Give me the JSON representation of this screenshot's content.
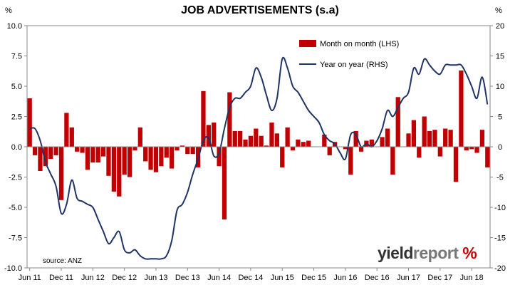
{
  "chart_data": {
    "type": "bar+line",
    "title": "JOB ADVERTISEMENTS (s.a)",
    "left_unit": "%",
    "right_unit": "%",
    "source": "source: ANZ",
    "brand": {
      "word1": "yield",
      "word2": "report",
      "symbol": "%"
    },
    "colors": {
      "bar": "#c00000",
      "line": "#1f3366"
    },
    "left_axis": {
      "min": -10,
      "max": 10,
      "ticks": [
        -10.0,
        -7.5,
        -5.0,
        -2.5,
        0.0,
        2.5,
        5.0,
        7.5,
        10.0
      ],
      "tick_labels": [
        "-10.0",
        "-7.5",
        "-5.0",
        "-2.5",
        "0.0",
        "2.5",
        "5.0",
        "7.5",
        "10.0"
      ]
    },
    "right_axis": {
      "min": -20,
      "max": 20,
      "ticks": [
        -20,
        -15,
        -10,
        -5,
        0,
        5,
        10,
        15,
        20
      ],
      "tick_labels": [
        "-20",
        "-15",
        "-10",
        "-5",
        "0",
        "5",
        "10",
        "15",
        "20"
      ]
    },
    "x_labels": [
      "Jun 11",
      "Dec 11",
      "Jun 12",
      "Dec 12",
      "Jun 13",
      "Dec 13",
      "Jun 14",
      "Dec 14",
      "Jun 15",
      "Dec 15",
      "Jun 16",
      "Dec 16",
      "Jun 17",
      "Dec 17",
      "Jun 18"
    ],
    "legend": [
      {
        "name": "Month on month (LHS)",
        "kind": "bar"
      },
      {
        "name": "Year on year (RHS)",
        "kind": "line"
      }
    ],
    "series": [
      {
        "name": "Month on month (LHS)",
        "values": [
          4.0,
          -0.7,
          -2.0,
          -1.6,
          -1.0,
          -0.7,
          -4.4,
          2.8,
          1.6,
          -0.4,
          -0.5,
          -1.9,
          -1.3,
          -1.3,
          -0.8,
          -2.4,
          -3.7,
          -4.1,
          -2.3,
          -2.5,
          -0.3,
          1.6,
          -1.2,
          -1.9,
          -2.1,
          -1.6,
          -0.9,
          -1.8,
          -0.3,
          0.1,
          -0.6,
          -0.6,
          -1.7,
          4.6,
          1.8,
          2.0,
          -1.6,
          -6.0,
          4.5,
          1.3,
          1.3,
          0.6,
          0.9,
          1.5,
          0.9,
          0.1,
          2.0,
          1.1,
          -1.7,
          1.6,
          -0.3,
          0.6,
          0.4,
          0.5,
          0.0,
          0.0,
          1.0,
          -0.7,
          0.4,
          0.0,
          -0.2,
          -2.3,
          1.3,
          -0.4,
          0.5,
          0.6,
          0.0,
          0.8,
          1.5,
          -2.3,
          4.1,
          0.0,
          1.1,
          2.2,
          -0.9,
          2.5,
          1.3,
          1.4,
          -0.8,
          1.5,
          1.4,
          -2.9,
          6.3,
          -0.3,
          -0.2,
          -0.5,
          1.4,
          -1.7
        ]
      },
      {
        "name": "Year on year (RHS)",
        "values": [
          3.0,
          3.0,
          1.0,
          -2.5,
          -4.5,
          -6.5,
          -11.0,
          -9.5,
          -5.5,
          -8.5,
          -9.0,
          -9.5,
          -10.0,
          -12.0,
          -14.0,
          -16.0,
          -15.0,
          -14.0,
          -17.0,
          -17.5,
          -17.0,
          -18.0,
          -18.5,
          -18.5,
          -18.5,
          -18.5,
          -18.0,
          -15.5,
          -10.5,
          -9.5,
          -7.5,
          -4.5,
          -2.0,
          1.0,
          1.5,
          -1.5,
          -1.0,
          3.0,
          6.5,
          8.0,
          8.0,
          9.0,
          10.0,
          13.0,
          11.5,
          8.5,
          6.0,
          8.0,
          14.5,
          13.0,
          10.0,
          9.0,
          7.5,
          6.0,
          5.0,
          4.0,
          2.0,
          1.0,
          0.5,
          -1.0,
          -2.0,
          2.0,
          2.0,
          0.0,
          0.5,
          0.0,
          1.0,
          3.0,
          6.0,
          5.0,
          6.5,
          8.0,
          9.0,
          13.0,
          12.0,
          14.5,
          13.5,
          12.5,
          12.0,
          13.5,
          13.5,
          13.5,
          13.5,
          12.0,
          10.0,
          8.0,
          11.5,
          7.0
        ]
      }
    ]
  }
}
